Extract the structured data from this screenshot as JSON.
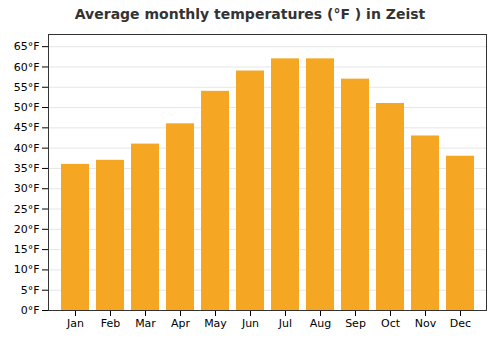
{
  "chart_data": {
    "type": "bar",
    "title": "Average monthly temperatures (°F ) in Zeist",
    "categories": [
      "Jan",
      "Feb",
      "Mar",
      "Apr",
      "May",
      "Jun",
      "Jul",
      "Aug",
      "Sep",
      "Oct",
      "Nov",
      "Dec"
    ],
    "values": [
      36,
      37,
      41,
      46,
      54,
      59,
      62,
      62,
      57,
      51,
      43,
      38
    ],
    "color": "#F5A623",
    "ylim": [
      0,
      68
    ],
    "yticks": [
      {
        "value": 0,
        "label": "0°F"
      },
      {
        "value": 5,
        "label": "5°F"
      },
      {
        "value": 10,
        "label": "10°F"
      },
      {
        "value": 15,
        "label": "15°F"
      },
      {
        "value": 20,
        "label": "20°F"
      },
      {
        "value": 25,
        "label": "25°F"
      },
      {
        "value": 30,
        "label": "30°F"
      },
      {
        "value": 35,
        "label": "35°F"
      },
      {
        "value": 40,
        "label": "40°F"
      },
      {
        "value": 45,
        "label": "45°F"
      },
      {
        "value": 50,
        "label": "50°F"
      },
      {
        "value": 55,
        "label": "55°F"
      },
      {
        "value": 60,
        "label": "60°F"
      },
      {
        "value": 65,
        "label": "65°F"
      }
    ],
    "grid": true
  }
}
